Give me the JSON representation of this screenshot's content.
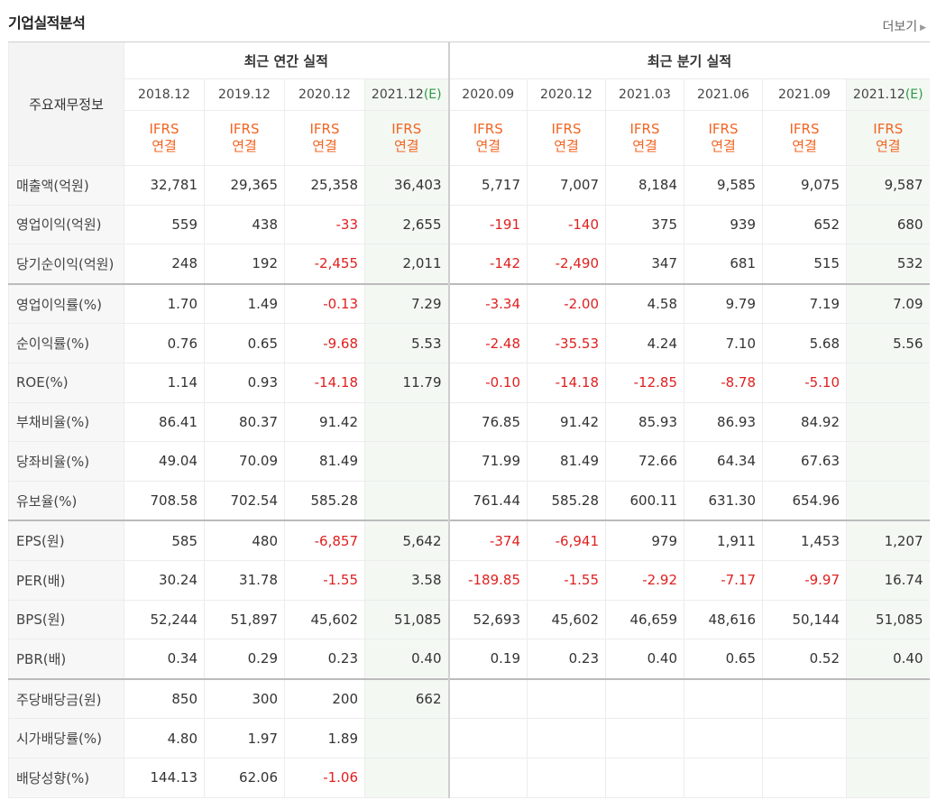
{
  "title": "기업실적분석",
  "more_label": "더보기",
  "row_header_label": "주요재무정보",
  "annual_group_label": "최근 연간 실적",
  "quarter_group_label": "최근 분기 실적",
  "ifrs_line1": "IFRS",
  "ifrs_line2": "연결",
  "estimate_mark": "(E)",
  "columns": [
    {
      "period": "2018.12",
      "estimate": false
    },
    {
      "period": "2019.12",
      "estimate": false
    },
    {
      "period": "2020.12",
      "estimate": false
    },
    {
      "period": "2021.12",
      "estimate": true
    },
    {
      "period": "2020.09",
      "estimate": false
    },
    {
      "period": "2020.12",
      "estimate": false
    },
    {
      "period": "2021.03",
      "estimate": false
    },
    {
      "period": "2021.06",
      "estimate": false
    },
    {
      "period": "2021.09",
      "estimate": false
    },
    {
      "period": "2021.12",
      "estimate": true
    }
  ],
  "rows": [
    {
      "label": "매출액(억원)",
      "group_start": false,
      "values": [
        "32,781",
        "29,365",
        "25,358",
        "36,403",
        "5,717",
        "7,007",
        "8,184",
        "9,585",
        "9,075",
        "9,587"
      ]
    },
    {
      "label": "영업이익(억원)",
      "group_start": false,
      "values": [
        "559",
        "438",
        "-33",
        "2,655",
        "-191",
        "-140",
        "375",
        "939",
        "652",
        "680"
      ]
    },
    {
      "label": "당기순이익(억원)",
      "group_start": false,
      "values": [
        "248",
        "192",
        "-2,455",
        "2,011",
        "-142",
        "-2,490",
        "347",
        "681",
        "515",
        "532"
      ]
    },
    {
      "label": "영업이익률(%)",
      "group_start": true,
      "values": [
        "1.70",
        "1.49",
        "-0.13",
        "7.29",
        "-3.34",
        "-2.00",
        "4.58",
        "9.79",
        "7.19",
        "7.09"
      ]
    },
    {
      "label": "순이익률(%)",
      "group_start": false,
      "values": [
        "0.76",
        "0.65",
        "-9.68",
        "5.53",
        "-2.48",
        "-35.53",
        "4.24",
        "7.10",
        "5.68",
        "5.56"
      ]
    },
    {
      "label": "ROE(%)",
      "group_start": false,
      "values": [
        "1.14",
        "0.93",
        "-14.18",
        "11.79",
        "-0.10",
        "-14.18",
        "-12.85",
        "-8.78",
        "-5.10",
        ""
      ]
    },
    {
      "label": "부채비율(%)",
      "group_start": false,
      "values": [
        "86.41",
        "80.37",
        "91.42",
        "",
        "76.85",
        "91.42",
        "85.93",
        "86.93",
        "84.92",
        ""
      ]
    },
    {
      "label": "당좌비율(%)",
      "group_start": false,
      "values": [
        "49.04",
        "70.09",
        "81.49",
        "",
        "71.99",
        "81.49",
        "72.66",
        "64.34",
        "67.63",
        ""
      ]
    },
    {
      "label": "유보율(%)",
      "group_start": false,
      "values": [
        "708.58",
        "702.54",
        "585.28",
        "",
        "761.44",
        "585.28",
        "600.11",
        "631.30",
        "654.96",
        ""
      ]
    },
    {
      "label": "EPS(원)",
      "group_start": true,
      "values": [
        "585",
        "480",
        "-6,857",
        "5,642",
        "-374",
        "-6,941",
        "979",
        "1,911",
        "1,453",
        "1,207"
      ]
    },
    {
      "label": "PER(배)",
      "group_start": false,
      "values": [
        "30.24",
        "31.78",
        "-1.55",
        "3.58",
        "-189.85",
        "-1.55",
        "-2.92",
        "-7.17",
        "-9.97",
        "16.74"
      ]
    },
    {
      "label": "BPS(원)",
      "group_start": false,
      "values": [
        "52,244",
        "51,897",
        "45,602",
        "51,085",
        "52,693",
        "45,602",
        "46,659",
        "48,616",
        "50,144",
        "51,085"
      ]
    },
    {
      "label": "PBR(배)",
      "group_start": false,
      "values": [
        "0.34",
        "0.29",
        "0.23",
        "0.40",
        "0.19",
        "0.23",
        "0.40",
        "0.65",
        "0.52",
        "0.40"
      ]
    },
    {
      "label": "주당배당금(원)",
      "group_start": true,
      "values": [
        "850",
        "300",
        "200",
        "662",
        "",
        "",
        "",
        "",
        "",
        ""
      ]
    },
    {
      "label": "시가배당률(%)",
      "group_start": false,
      "values": [
        "4.80",
        "1.97",
        "1.89",
        "",
        "",
        "",
        "",
        "",
        "",
        ""
      ]
    },
    {
      "label": "배당성향(%)",
      "group_start": false,
      "values": [
        "144.13",
        "62.06",
        "-1.06",
        "",
        "",
        "",
        "",
        "",
        "",
        ""
      ]
    }
  ]
}
